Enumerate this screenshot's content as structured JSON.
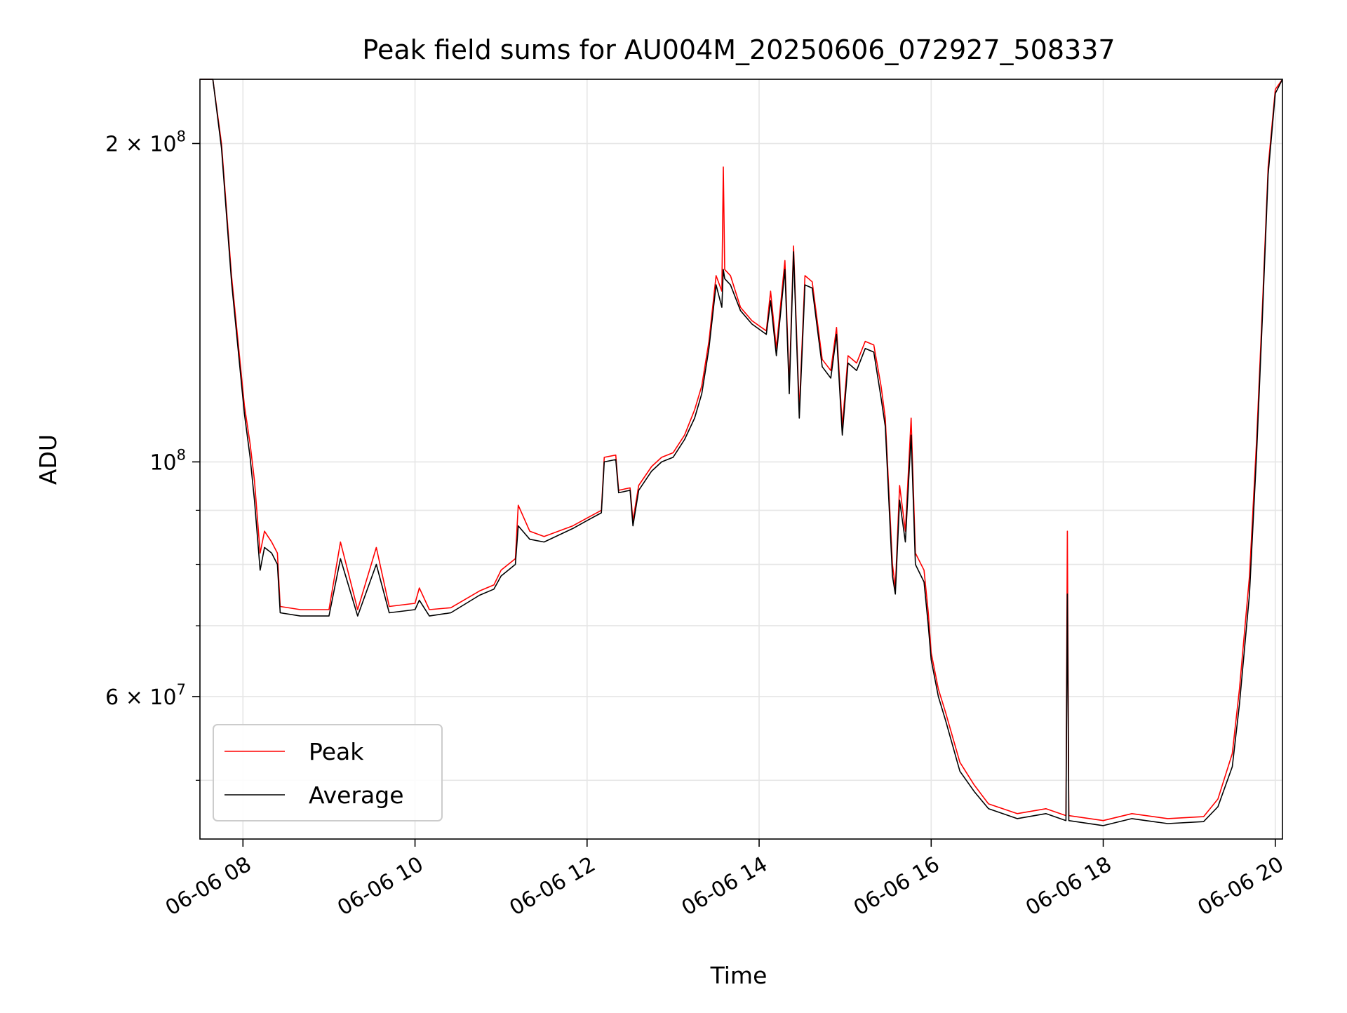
{
  "chart_data": {
    "type": "line",
    "title": "Peak field sums for AU004M_20250606_072927_508337",
    "xlabel": "Time",
    "ylabel": "ADU",
    "xlim": [
      "2025-06-06 07:30",
      "2025-06-06 20:05"
    ],
    "ylim": [
      44000000,
      230000000
    ],
    "yscale": "log",
    "grid": true,
    "legend_position": "lower-left",
    "x_ticks": [
      {
        "x": "2025-06-06 08:00",
        "label": "06-06 08"
      },
      {
        "x": "2025-06-06 10:00",
        "label": "06-06 10"
      },
      {
        "x": "2025-06-06 12:00",
        "label": "06-06 12"
      },
      {
        "x": "2025-06-06 14:00",
        "label": "06-06 14"
      },
      {
        "x": "2025-06-06 16:00",
        "label": "06-06 16"
      },
      {
        "x": "2025-06-06 18:00",
        "label": "06-06 18"
      },
      {
        "x": "2025-06-06 20:00",
        "label": "06-06 20"
      }
    ],
    "y_ticks": [
      {
        "value": 200000000,
        "base": "2 × 10",
        "exp": "8"
      },
      {
        "value": 100000000,
        "base": "10",
        "exp": "8"
      },
      {
        "value": 60000000,
        "base": "6 × 10",
        "exp": "7"
      }
    ],
    "y_minor_ticks": [
      50000000,
      70000000,
      80000000,
      90000000
    ],
    "series": [
      {
        "name": "Peak",
        "color": "#ff0000",
        "points": [
          [
            "2025-06-06 07:30",
            230000000
          ],
          [
            "2025-06-06 07:39",
            230000000
          ],
          [
            "2025-06-06 07:45",
            200000000
          ],
          [
            "2025-06-06 07:52",
            150000000
          ],
          [
            "2025-06-06 08:01",
            113000000
          ],
          [
            "2025-06-06 08:05",
            104000000
          ],
          [
            "2025-06-06 08:08",
            96000000
          ],
          [
            "2025-06-06 08:12",
            82000000
          ],
          [
            "2025-06-06 08:15",
            86000000
          ],
          [
            "2025-06-06 08:20",
            84000000
          ],
          [
            "2025-06-06 08:24",
            82000000
          ],
          [
            "2025-06-06 08:26",
            73000000
          ],
          [
            "2025-06-06 08:40",
            72500000
          ],
          [
            "2025-06-06 09:00",
            72500000
          ],
          [
            "2025-06-06 09:08",
            84000000
          ],
          [
            "2025-06-06 09:20",
            72500000
          ],
          [
            "2025-06-06 09:33",
            83000000
          ],
          [
            "2025-06-06 09:42",
            73000000
          ],
          [
            "2025-06-06 10:00",
            73500000
          ],
          [
            "2025-06-06 10:03",
            76000000
          ],
          [
            "2025-06-06 10:10",
            72500000
          ],
          [
            "2025-06-06 10:25",
            72800000
          ],
          [
            "2025-06-06 10:45",
            75500000
          ],
          [
            "2025-06-06 10:55",
            76500000
          ],
          [
            "2025-06-06 11:00",
            79000000
          ],
          [
            "2025-06-06 11:10",
            81000000
          ],
          [
            "2025-06-06 11:12",
            91000000
          ],
          [
            "2025-06-06 11:20",
            86000000
          ],
          [
            "2025-06-06 11:30",
            85000000
          ],
          [
            "2025-06-06 11:50",
            87000000
          ],
          [
            "2025-06-06 12:00",
            88500000
          ],
          [
            "2025-06-06 12:10",
            90000000
          ],
          [
            "2025-06-06 12:12",
            101000000
          ],
          [
            "2025-06-06 12:20",
            101500000
          ],
          [
            "2025-06-06 12:22",
            94000000
          ],
          [
            "2025-06-06 12:30",
            94500000
          ],
          [
            "2025-06-06 12:32",
            88000000
          ],
          [
            "2025-06-06 12:36",
            95000000
          ],
          [
            "2025-06-06 12:45",
            99000000
          ],
          [
            "2025-06-06 12:52",
            101000000
          ],
          [
            "2025-06-06 13:00",
            102000000
          ],
          [
            "2025-06-06 13:08",
            106000000
          ],
          [
            "2025-06-06 13:15",
            112000000
          ],
          [
            "2025-06-06 13:20",
            118000000
          ],
          [
            "2025-06-06 13:25",
            130000000
          ],
          [
            "2025-06-06 13:30",
            150000000
          ],
          [
            "2025-06-06 13:34",
            145000000
          ],
          [
            "2025-06-06 13:35",
            190000000
          ],
          [
            "2025-06-06 13:36",
            152000000
          ],
          [
            "2025-06-06 13:40",
            150000000
          ],
          [
            "2025-06-06 13:47",
            140000000
          ],
          [
            "2025-06-06 13:55",
            136000000
          ],
          [
            "2025-06-06 14:05",
            133000000
          ],
          [
            "2025-06-06 14:08",
            145000000
          ],
          [
            "2025-06-06 14:12",
            128000000
          ],
          [
            "2025-06-06 14:18",
            155000000
          ],
          [
            "2025-06-06 14:21",
            118000000
          ],
          [
            "2025-06-06 14:24",
            160000000
          ],
          [
            "2025-06-06 14:28",
            112000000
          ],
          [
            "2025-06-06 14:32",
            150000000
          ],
          [
            "2025-06-06 14:37",
            148000000
          ],
          [
            "2025-06-06 14:44",
            125000000
          ],
          [
            "2025-06-06 14:50",
            122000000
          ],
          [
            "2025-06-06 14:54",
            134000000
          ],
          [
            "2025-06-06 14:58",
            108000000
          ],
          [
            "2025-06-06 15:02",
            126000000
          ],
          [
            "2025-06-06 15:08",
            124000000
          ],
          [
            "2025-06-06 15:14",
            130000000
          ],
          [
            "2025-06-06 15:20",
            129000000
          ],
          [
            "2025-06-06 15:25",
            118000000
          ],
          [
            "2025-06-06 15:28",
            110000000
          ],
          [
            "2025-06-06 15:33",
            80000000
          ],
          [
            "2025-06-06 15:35",
            76000000
          ],
          [
            "2025-06-06 15:38",
            95000000
          ],
          [
            "2025-06-06 15:42",
            86000000
          ],
          [
            "2025-06-06 15:46",
            110000000
          ],
          [
            "2025-06-06 15:49",
            82000000
          ],
          [
            "2025-06-06 15:55",
            79000000
          ],
          [
            "2025-06-06 15:58",
            72000000
          ],
          [
            "2025-06-06 16:00",
            66000000
          ],
          [
            "2025-06-06 16:05",
            61000000
          ],
          [
            "2025-06-06 16:10",
            58000000
          ],
          [
            "2025-06-06 16:20",
            52000000
          ],
          [
            "2025-06-06 16:30",
            49500000
          ],
          [
            "2025-06-06 16:40",
            47500000
          ],
          [
            "2025-06-06 17:00",
            46500000
          ],
          [
            "2025-06-06 17:20",
            47000000
          ],
          [
            "2025-06-06 17:34",
            46300000
          ],
          [
            "2025-06-06 17:35",
            86000000
          ],
          [
            "2025-06-06 17:36",
            46300000
          ],
          [
            "2025-06-06 18:00",
            45800000
          ],
          [
            "2025-06-06 18:20",
            46500000
          ],
          [
            "2025-06-06 18:45",
            46000000
          ],
          [
            "2025-06-06 19:10",
            46200000
          ],
          [
            "2025-06-06 19:20",
            48000000
          ],
          [
            "2025-06-06 19:30",
            53000000
          ],
          [
            "2025-06-06 19:35",
            61000000
          ],
          [
            "2025-06-06 19:42",
            78000000
          ],
          [
            "2025-06-06 19:47",
            105000000
          ],
          [
            "2025-06-06 19:51",
            140000000
          ],
          [
            "2025-06-06 19:55",
            190000000
          ],
          [
            "2025-06-06 20:00",
            225000000
          ],
          [
            "2025-06-06 20:05",
            230000000
          ]
        ]
      },
      {
        "name": "Average",
        "color": "#000000",
        "points": [
          [
            "2025-06-06 07:30",
            230000000
          ],
          [
            "2025-06-06 07:39",
            230000000
          ],
          [
            "2025-06-06 07:45",
            198000000
          ],
          [
            "2025-06-06 07:52",
            148000000
          ],
          [
            "2025-06-06 08:01",
            111000000
          ],
          [
            "2025-06-06 08:05",
            101000000
          ],
          [
            "2025-06-06 08:08",
            92000000
          ],
          [
            "2025-06-06 08:12",
            79000000
          ],
          [
            "2025-06-06 08:15",
            83000000
          ],
          [
            "2025-06-06 08:20",
            82000000
          ],
          [
            "2025-06-06 08:24",
            80000000
          ],
          [
            "2025-06-06 08:26",
            72000000
          ],
          [
            "2025-06-06 08:40",
            71500000
          ],
          [
            "2025-06-06 09:00",
            71500000
          ],
          [
            "2025-06-06 09:08",
            81000000
          ],
          [
            "2025-06-06 09:20",
            71500000
          ],
          [
            "2025-06-06 09:33",
            80000000
          ],
          [
            "2025-06-06 09:42",
            72000000
          ],
          [
            "2025-06-06 10:00",
            72500000
          ],
          [
            "2025-06-06 10:03",
            74000000
          ],
          [
            "2025-06-06 10:10",
            71500000
          ],
          [
            "2025-06-06 10:25",
            72000000
          ],
          [
            "2025-06-06 10:45",
            74800000
          ],
          [
            "2025-06-06 10:55",
            75800000
          ],
          [
            "2025-06-06 11:00",
            78000000
          ],
          [
            "2025-06-06 11:10",
            80000000
          ],
          [
            "2025-06-06 11:12",
            87000000
          ],
          [
            "2025-06-06 11:20",
            84500000
          ],
          [
            "2025-06-06 11:30",
            84000000
          ],
          [
            "2025-06-06 11:50",
            86500000
          ],
          [
            "2025-06-06 12:00",
            88000000
          ],
          [
            "2025-06-06 12:10",
            89500000
          ],
          [
            "2025-06-06 12:12",
            100000000
          ],
          [
            "2025-06-06 12:20",
            100500000
          ],
          [
            "2025-06-06 12:22",
            93500000
          ],
          [
            "2025-06-06 12:30",
            94000000
          ],
          [
            "2025-06-06 12:32",
            87000000
          ],
          [
            "2025-06-06 12:36",
            94000000
          ],
          [
            "2025-06-06 12:45",
            98000000
          ],
          [
            "2025-06-06 12:52",
            100000000
          ],
          [
            "2025-06-06 13:00",
            101000000
          ],
          [
            "2025-06-06 13:08",
            105000000
          ],
          [
            "2025-06-06 13:15",
            110000000
          ],
          [
            "2025-06-06 13:20",
            116000000
          ],
          [
            "2025-06-06 13:25",
            128000000
          ],
          [
            "2025-06-06 13:30",
            147000000
          ],
          [
            "2025-06-06 13:34",
            140000000
          ],
          [
            "2025-06-06 13:35",
            152000000
          ],
          [
            "2025-06-06 13:36",
            149000000
          ],
          [
            "2025-06-06 13:40",
            147000000
          ],
          [
            "2025-06-06 13:47",
            139000000
          ],
          [
            "2025-06-06 13:55",
            135000000
          ],
          [
            "2025-06-06 14:05",
            132000000
          ],
          [
            "2025-06-06 14:08",
            142000000
          ],
          [
            "2025-06-06 14:12",
            126000000
          ],
          [
            "2025-06-06 14:18",
            152000000
          ],
          [
            "2025-06-06 14:21",
            116000000
          ],
          [
            "2025-06-06 14:24",
            158000000
          ],
          [
            "2025-06-06 14:28",
            110000000
          ],
          [
            "2025-06-06 14:32",
            147000000
          ],
          [
            "2025-06-06 14:37",
            146000000
          ],
          [
            "2025-06-06 14:44",
            123000000
          ],
          [
            "2025-06-06 14:50",
            120000000
          ],
          [
            "2025-06-06 14:54",
            132000000
          ],
          [
            "2025-06-06 14:58",
            106000000
          ],
          [
            "2025-06-06 15:02",
            124000000
          ],
          [
            "2025-06-06 15:08",
            122000000
          ],
          [
            "2025-06-06 15:14",
            128000000
          ],
          [
            "2025-06-06 15:20",
            127000000
          ],
          [
            "2025-06-06 15:25",
            115000000
          ],
          [
            "2025-06-06 15:28",
            108000000
          ],
          [
            "2025-06-06 15:33",
            78000000
          ],
          [
            "2025-06-06 15:35",
            75000000
          ],
          [
            "2025-06-06 15:38",
            92000000
          ],
          [
            "2025-06-06 15:42",
            84000000
          ],
          [
            "2025-06-06 15:46",
            106000000
          ],
          [
            "2025-06-06 15:49",
            80000000
          ],
          [
            "2025-06-06 15:55",
            77000000
          ],
          [
            "2025-06-06 15:58",
            70000000
          ],
          [
            "2025-06-06 16:00",
            65000000
          ],
          [
            "2025-06-06 16:05",
            60000000
          ],
          [
            "2025-06-06 16:10",
            57000000
          ],
          [
            "2025-06-06 16:20",
            51000000
          ],
          [
            "2025-06-06 16:30",
            48800000
          ],
          [
            "2025-06-06 16:40",
            47000000
          ],
          [
            "2025-06-06 17:00",
            46000000
          ],
          [
            "2025-06-06 17:20",
            46500000
          ],
          [
            "2025-06-06 17:34",
            45800000
          ],
          [
            "2025-06-06 17:35",
            75000000
          ],
          [
            "2025-06-06 17:36",
            45800000
          ],
          [
            "2025-06-06 18:00",
            45300000
          ],
          [
            "2025-06-06 18:20",
            46000000
          ],
          [
            "2025-06-06 18:45",
            45500000
          ],
          [
            "2025-06-06 19:10",
            45700000
          ],
          [
            "2025-06-06 19:20",
            47200000
          ],
          [
            "2025-06-06 19:30",
            51500000
          ],
          [
            "2025-06-06 19:35",
            59000000
          ],
          [
            "2025-06-06 19:42",
            75000000
          ],
          [
            "2025-06-06 19:47",
            102000000
          ],
          [
            "2025-06-06 19:51",
            137000000
          ],
          [
            "2025-06-06 19:55",
            187000000
          ],
          [
            "2025-06-06 20:00",
            223000000
          ],
          [
            "2025-06-06 20:05",
            230000000
          ]
        ]
      }
    ]
  }
}
